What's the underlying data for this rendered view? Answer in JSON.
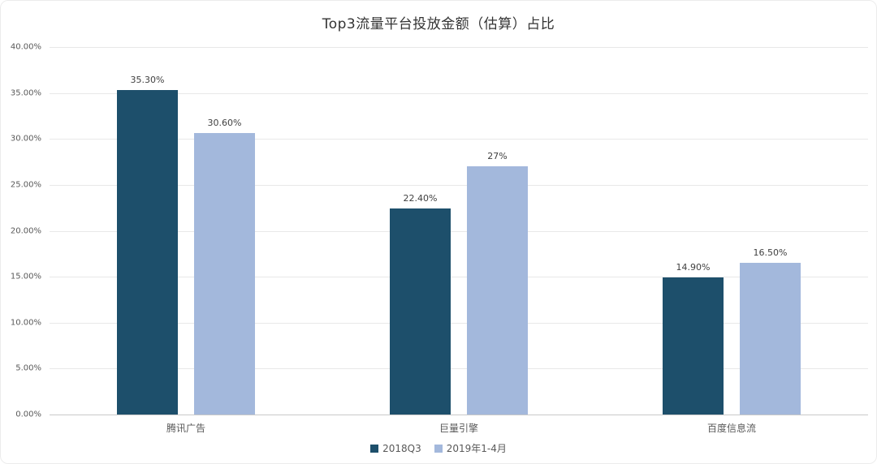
{
  "title": "Top3流量平台投放金额（估算）占比",
  "chart_data": {
    "type": "bar",
    "categories": [
      "腾讯广告",
      "巨量引擎",
      "百度信息流"
    ],
    "series": [
      {
        "name": "2018Q3",
        "color": "#1d4f6b",
        "values": [
          35.3,
          22.4,
          14.9
        ],
        "labels": [
          "35.30%",
          "22.40%",
          "14.90%"
        ]
      },
      {
        "name": "2019年1-4月",
        "color": "#a3b8dc",
        "values": [
          30.6,
          27,
          16.5
        ],
        "labels": [
          "30.60%",
          "27%",
          "16.50%"
        ]
      }
    ],
    "ylim": [
      0,
      40
    ],
    "ytick_step": 5,
    "ytick_labels": [
      "0.00%",
      "5.00%",
      "10.00%",
      "15.00%",
      "20.00%",
      "25.00%",
      "30.00%",
      "35.00%",
      "40.00%"
    ],
    "grid": true,
    "legend_position": "bottom"
  }
}
